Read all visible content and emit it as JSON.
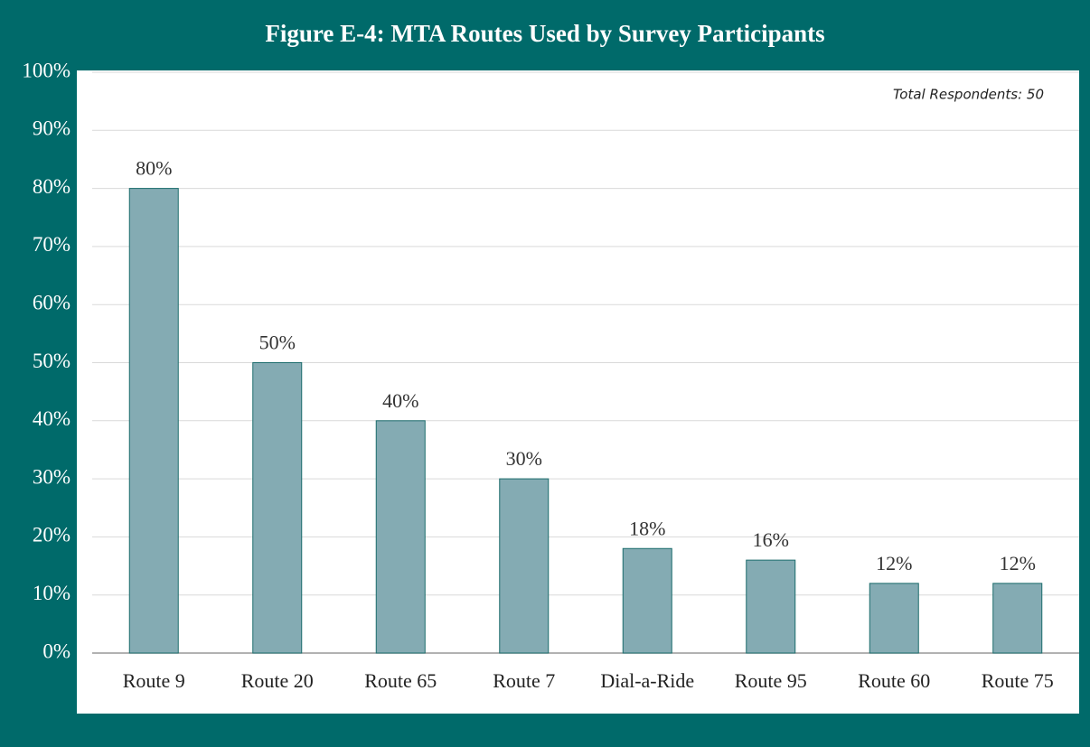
{
  "chart_data": {
    "type": "bar",
    "title": "Figure E-4: MTA Routes Used by Survey Participants",
    "annotation": "Total Respondents: 50",
    "categories": [
      "Route 9",
      "Route 20",
      "Route 65",
      "Route 7",
      "Dial-a-Ride",
      "Route 95",
      "Route 60",
      "Route 75"
    ],
    "values": [
      80,
      50,
      40,
      30,
      18,
      16,
      12,
      12
    ],
    "value_labels": [
      "80%",
      "50%",
      "40%",
      "30%",
      "18%",
      "16%",
      "12%",
      "12%"
    ],
    "color": "#84abb3",
    "ylim": [
      0,
      100
    ],
    "yticks": [
      {
        "value": 0,
        "label": "0%"
      },
      {
        "value": 10,
        "label": "10%"
      },
      {
        "value": 20,
        "label": "20%"
      },
      {
        "value": 30,
        "label": "30%"
      },
      {
        "value": 40,
        "label": "40%"
      },
      {
        "value": 50,
        "label": "50%"
      },
      {
        "value": 60,
        "label": "60%"
      },
      {
        "value": 70,
        "label": "70%"
      },
      {
        "value": 80,
        "label": "80%"
      },
      {
        "value": 90,
        "label": "90%"
      },
      {
        "value": 100,
        "label": "100%"
      }
    ],
    "grid": true
  }
}
